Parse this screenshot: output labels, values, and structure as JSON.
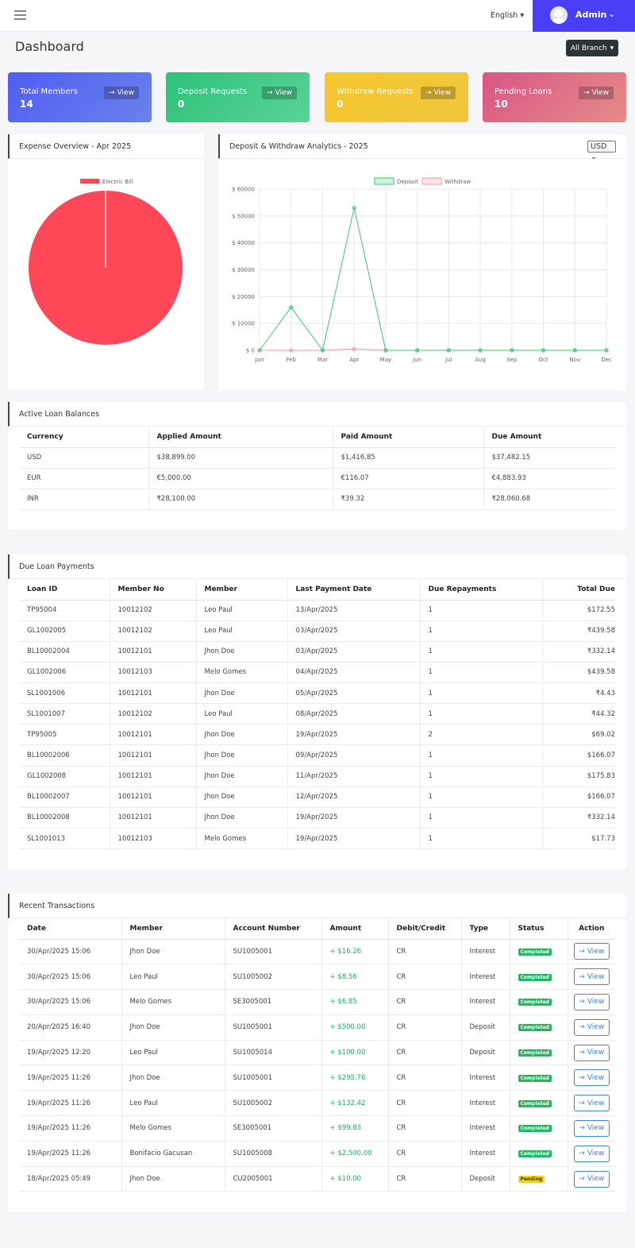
{
  "topbar": {
    "language": "English",
    "user": "Admin"
  },
  "page": {
    "title": "Dashboard",
    "branch_button": "All Branch"
  },
  "stats": [
    {
      "label": "Total Members",
      "value": "14",
      "button": "View",
      "color": "#5b6ef2"
    },
    {
      "label": "Deposit Requests",
      "value": "0",
      "button": "View",
      "color": "#35c67f"
    },
    {
      "label": "Withdraw Requests",
      "value": "0",
      "button": "View",
      "color": "#f1c531"
    },
    {
      "label": "Pending Loans",
      "value": "10",
      "button": "View",
      "color": "#e06a8a"
    }
  ],
  "expense_card": {
    "title": "Expense Overview - Apr 2025"
  },
  "analytics_card": {
    "title": "Deposit & Withdraw Analytics - 2025",
    "currency": "USD"
  },
  "chart_data": [
    {
      "type": "pie",
      "title": "",
      "labels": [
        "Electric Bill"
      ],
      "values": [
        100
      ],
      "colors": [
        "#ff4757"
      ],
      "legend": "top"
    },
    {
      "type": "line",
      "title": "",
      "categories": [
        "Jan",
        "Feb",
        "Mar",
        "Apr",
        "May",
        "Jun",
        "Jul",
        "Aug",
        "Sep",
        "Oct",
        "Nov",
        "Dec"
      ],
      "series": [
        {
          "name": "Deposit",
          "color": "#3ec67a",
          "values": [
            0,
            16000,
            0,
            53000,
            0,
            0,
            0,
            0,
            0,
            0,
            0,
            0
          ]
        },
        {
          "name": "Withdraw",
          "color": "#f39aa6",
          "values": [
            0,
            0,
            0,
            500,
            0,
            0,
            0,
            0,
            0,
            0,
            0,
            0
          ]
        }
      ],
      "ylim": [
        0,
        60000
      ],
      "yticks": [
        "$ 0",
        "$ 10000",
        "$ 20000",
        "$ 30000",
        "$ 40000",
        "$ 50000",
        "$ 60000"
      ],
      "legend": "top",
      "grid": true
    }
  ],
  "loan_balances": {
    "title": "Active Loan Balances",
    "columns": [
      "Currency",
      "Applied Amount",
      "Paid Amount",
      "Due Amount"
    ],
    "rows": [
      [
        "USD",
        "$38,899.00",
        "$1,416.85",
        "$37,482.15"
      ],
      [
        "EUR",
        "€5,000.00",
        "€116.07",
        "€4,883.93"
      ],
      [
        "INR",
        "₹28,100.00",
        "₹39.32",
        "₹28,060.68"
      ]
    ]
  },
  "due_payments": {
    "title": "Due Loan Payments",
    "columns": [
      "Loan ID",
      "Member No",
      "Member",
      "Last Payment Date",
      "Due Repayments",
      "Total Due"
    ],
    "rows": [
      [
        "TP95004",
        "10012102",
        "Leo Paul",
        "13/Apr/2025",
        "1",
        "$172.55"
      ],
      [
        "GL1002005",
        "10012102",
        "Leo Paul",
        "03/Apr/2025",
        "1",
        "₹439.58"
      ],
      [
        "BL10002004",
        "10012101",
        "Jhon Doe",
        "03/Apr/2025",
        "1",
        "₹332.14"
      ],
      [
        "GL1002006",
        "10012103",
        "Melo Gomes",
        "04/Apr/2025",
        "1",
        "$439.58"
      ],
      [
        "SL1001006",
        "10012101",
        "Jhon Doe",
        "05/Apr/2025",
        "1",
        "₹4.43"
      ],
      [
        "SL1001007",
        "10012102",
        "Leo Paul",
        "08/Apr/2025",
        "1",
        "₹44.32"
      ],
      [
        "TP95005",
        "10012101",
        "Jhon Doe",
        "19/Apr/2025",
        "2",
        "$69.02"
      ],
      [
        "BL10002006",
        "10012101",
        "Jhon Doe",
        "09/Apr/2025",
        "1",
        "$166.07"
      ],
      [
        "GL1002008",
        "10012101",
        "Jhon Doe",
        "11/Apr/2025",
        "1",
        "$175.83"
      ],
      [
        "BL10002007",
        "10012101",
        "Jhon Doe",
        "12/Apr/2025",
        "1",
        "$166.07"
      ],
      [
        "BL10002008",
        "10012101",
        "Jhon Doe",
        "19/Apr/2025",
        "1",
        "₹332.14"
      ],
      [
        "SL1001013",
        "10012103",
        "Melo Gomes",
        "19/Apr/2025",
        "1",
        "$17.73"
      ]
    ]
  },
  "transactions": {
    "title": "Recent Transactions",
    "columns": [
      "Date",
      "Member",
      "Account Number",
      "Amount",
      "Debit/Credit",
      "Type",
      "Status",
      "Action"
    ],
    "action_label": "View",
    "rows": [
      [
        "30/Apr/2025 15:06",
        "Jhon Doe",
        "SU1005001",
        "+ $16.26",
        "CR",
        "Interest",
        "Completed"
      ],
      [
        "30/Apr/2025 15:06",
        "Leo Paul",
        "SU1005002",
        "+ $8.56",
        "CR",
        "Interest",
        "Completed"
      ],
      [
        "30/Apr/2025 15:06",
        "Melo Gomes",
        "SE3005001",
        "+ $6.85",
        "CR",
        "Interest",
        "Completed"
      ],
      [
        "20/Apr/2025 16:40",
        "Jhon Doe",
        "SU1005001",
        "+ $500.00",
        "CR",
        "Deposit",
        "Completed"
      ],
      [
        "19/Apr/2025 12:20",
        "Leo Paul",
        "SU1005014",
        "+ $100.00",
        "CR",
        "Deposit",
        "Completed"
      ],
      [
        "19/Apr/2025 11:26",
        "Jhon Doe",
        "SU1005001",
        "+ $295.76",
        "CR",
        "Interest",
        "Completed"
      ],
      [
        "19/Apr/2025 11:26",
        "Leo Paul",
        "SU1005002",
        "+ $132.42",
        "CR",
        "Interest",
        "Completed"
      ],
      [
        "19/Apr/2025 11:26",
        "Melo Gomes",
        "SE3005001",
        "+ $99.83",
        "CR",
        "Interest",
        "Completed"
      ],
      [
        "19/Apr/2025 11:26",
        "Bonifacio Gacusan",
        "SU1005008",
        "+ $2,500.00",
        "CR",
        "Interest",
        "Completed"
      ],
      [
        "18/Apr/2025 05:49",
        "Jhon Doe",
        "CU2005001",
        "+ $10.00",
        "CR",
        "Deposit",
        "Pending"
      ]
    ]
  }
}
